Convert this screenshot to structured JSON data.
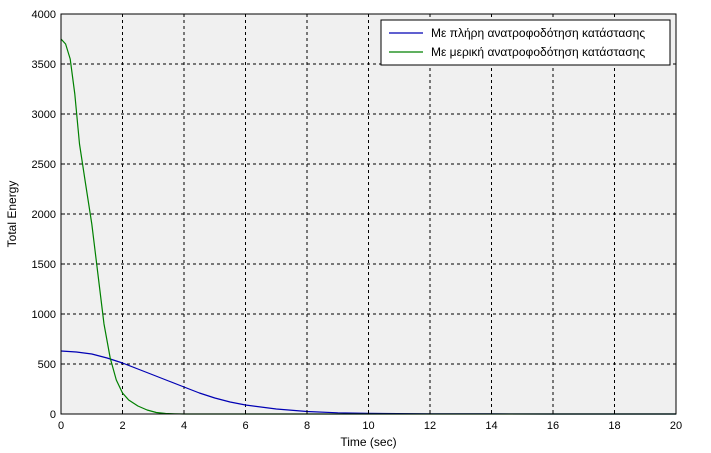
{
  "chart_data": {
    "type": "line",
    "xlabel": "Time (sec)",
    "ylabel": "Total Energy",
    "xlim": [
      0,
      20
    ],
    "ylim": [
      0,
      4000
    ],
    "xticks": [
      0,
      2,
      4,
      6,
      8,
      10,
      12,
      14,
      16,
      18,
      20
    ],
    "yticks": [
      0,
      500,
      1000,
      1500,
      2000,
      2500,
      3000,
      3500,
      4000
    ],
    "grid": true,
    "grid_style": "dashed",
    "legend_position": "top-right",
    "background": "#f0f0f0",
    "series": [
      {
        "name": "Με πλήρη ανατροφοδότηση κατάστασης",
        "color": "#0000b4",
        "x": [
          0,
          0.5,
          1,
          1.5,
          2,
          2.5,
          3,
          3.5,
          4,
          4.5,
          5,
          5.5,
          6,
          7,
          8,
          9,
          10,
          12,
          14,
          16,
          18,
          20
        ],
        "y": [
          630,
          620,
          600,
          560,
          510,
          450,
          390,
          330,
          270,
          210,
          160,
          120,
          90,
          50,
          25,
          12,
          6,
          2,
          1,
          0,
          0,
          0
        ]
      },
      {
        "name": "Με μερική ανατροφοδότηση κατάστασης",
        "color": "#008000",
        "x": [
          0,
          0.15,
          0.3,
          0.45,
          0.6,
          0.8,
          1.0,
          1.2,
          1.4,
          1.6,
          1.8,
          2.0,
          2.2,
          2.5,
          2.8,
          3.1,
          3.4,
          3.7,
          4.0,
          5,
          6,
          8,
          10,
          12,
          14,
          16,
          18,
          20
        ],
        "y": [
          3750,
          3700,
          3550,
          3200,
          2700,
          2300,
          1900,
          1400,
          900,
          560,
          340,
          210,
          140,
          80,
          40,
          15,
          5,
          2,
          0,
          0,
          0,
          0,
          0,
          0,
          0,
          0,
          0,
          0
        ]
      }
    ]
  }
}
